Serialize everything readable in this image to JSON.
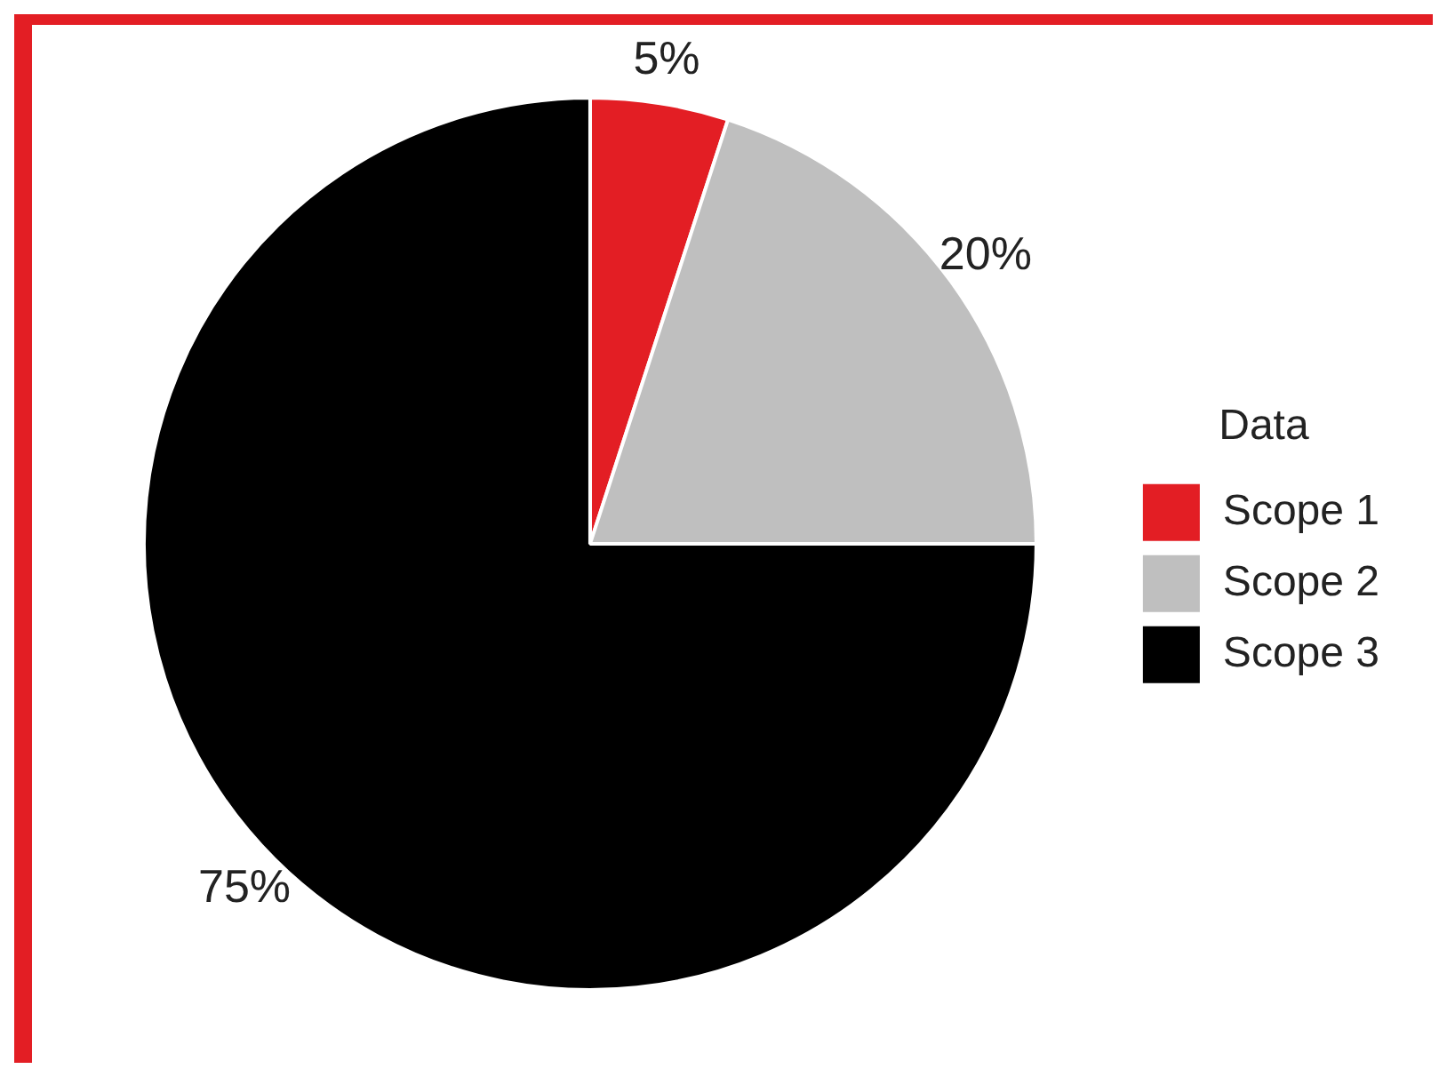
{
  "chart_data": {
    "type": "pie",
    "categories": [
      "Scope 1",
      "Scope 2",
      "Scope 3"
    ],
    "values": [
      5,
      20,
      75
    ],
    "colors": [
      "#e31e24",
      "#bfbfbf",
      "#000000"
    ],
    "legend_title": "Data",
    "legend": "right",
    "value_labels": [
      "5%",
      "20%",
      "75%"
    ]
  }
}
